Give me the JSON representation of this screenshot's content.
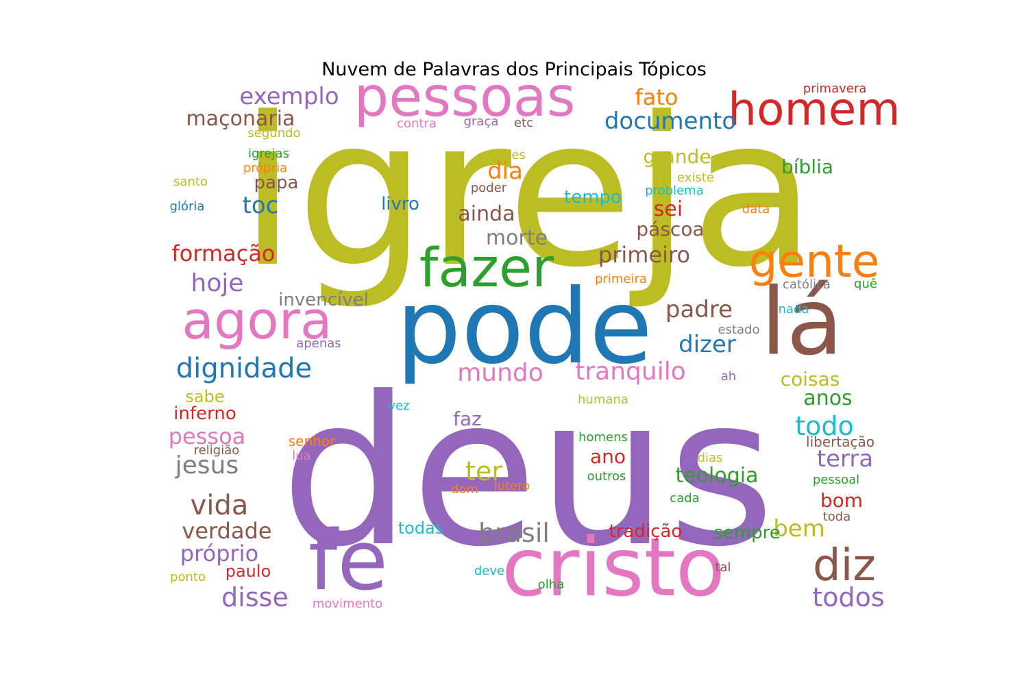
{
  "title": "Nuvem de Palavras dos Principais Tópicos",
  "colors": {
    "olive": "#bcbd22",
    "pink": "#e377c2",
    "red": "#d62728",
    "purple": "#9467bd",
    "blue": "#1f77b4",
    "green": "#2ca02c",
    "orange": "#ff7f0e",
    "brown": "#8c564b",
    "gray": "#7f7f7f",
    "cyan": "#17becf"
  },
  "words": [
    {
      "text": "igreja",
      "color": "olive"
    },
    {
      "text": "deus",
      "color": "purple"
    },
    {
      "text": "pode",
      "color": "blue"
    },
    {
      "text": "cristo",
      "color": "pink"
    },
    {
      "text": "fé",
      "color": "purple"
    },
    {
      "text": "lá",
      "color": "brown"
    },
    {
      "text": "pessoas",
      "color": "pink"
    },
    {
      "text": "fazer",
      "color": "green"
    },
    {
      "text": "agora",
      "color": "pink"
    },
    {
      "text": "homem",
      "color": "red"
    },
    {
      "text": "gente",
      "color": "orange"
    },
    {
      "text": "diz",
      "color": "brown"
    },
    {
      "text": "exemplo",
      "color": "purple"
    },
    {
      "text": "dignidade",
      "color": "blue"
    },
    {
      "text": "mundo",
      "color": "pink"
    },
    {
      "text": "tranquilo",
      "color": "pink"
    },
    {
      "text": "documento",
      "color": "blue"
    },
    {
      "text": "fato",
      "color": "orange"
    },
    {
      "text": "maçonaria",
      "color": "brown"
    },
    {
      "text": "primeiro",
      "color": "brown"
    },
    {
      "text": "dizer",
      "color": "blue"
    },
    {
      "text": "padre",
      "color": "brown"
    },
    {
      "text": "todos",
      "color": "purple"
    },
    {
      "text": "brasil",
      "color": "gray"
    },
    {
      "text": "disse",
      "color": "purple"
    },
    {
      "text": "vida",
      "color": "brown"
    },
    {
      "text": "hoje",
      "color": "purple"
    },
    {
      "text": "toc",
      "color": "blue"
    },
    {
      "text": "jesus",
      "color": "gray"
    },
    {
      "text": "pessoa",
      "color": "pink"
    },
    {
      "text": "formação",
      "color": "red"
    },
    {
      "text": "verdade",
      "color": "brown"
    },
    {
      "text": "próprio",
      "color": "purple"
    },
    {
      "text": "invencível",
      "color": "gray"
    },
    {
      "text": "morte",
      "color": "gray"
    },
    {
      "text": "ainda",
      "color": "brown"
    },
    {
      "text": "páscoa",
      "color": "brown"
    },
    {
      "text": "sei",
      "color": "red"
    },
    {
      "text": "dia",
      "color": "orange"
    },
    {
      "text": "papa",
      "color": "brown"
    },
    {
      "text": "grande",
      "color": "olive"
    },
    {
      "text": "bíblia",
      "color": "green"
    },
    {
      "text": "ter",
      "color": "olive"
    },
    {
      "text": "todo",
      "color": "cyan"
    },
    {
      "text": "terra",
      "color": "purple"
    },
    {
      "text": "teologia",
      "color": "green"
    },
    {
      "text": "bem",
      "color": "olive"
    },
    {
      "text": "anos",
      "color": "green"
    },
    {
      "text": "coisas",
      "color": "olive"
    },
    {
      "text": "tempo",
      "color": "cyan"
    },
    {
      "text": "livro",
      "color": "blue"
    },
    {
      "text": "faz",
      "color": "purple"
    },
    {
      "text": "ano",
      "color": "red"
    },
    {
      "text": "bom",
      "color": "red"
    },
    {
      "text": "tradição",
      "color": "red"
    },
    {
      "text": "sempre",
      "color": "green"
    },
    {
      "text": "inferno",
      "color": "red"
    },
    {
      "text": "sabe",
      "color": "olive"
    },
    {
      "text": "paulo",
      "color": "red"
    },
    {
      "text": "todas",
      "color": "cyan"
    },
    {
      "text": "senhor",
      "color": "orange"
    },
    {
      "text": "religião",
      "color": "brown"
    },
    {
      "text": "lua",
      "color": "pink"
    },
    {
      "text": "primeira",
      "color": "orange"
    },
    {
      "text": "católica",
      "color": "gray"
    },
    {
      "text": "quê",
      "color": "green"
    },
    {
      "text": "nada",
      "color": "cyan"
    },
    {
      "text": "estado",
      "color": "gray"
    },
    {
      "text": "ah",
      "color": "purple"
    },
    {
      "text": "apenas",
      "color": "purple"
    },
    {
      "text": "humana",
      "color": "olive"
    },
    {
      "text": "vez",
      "color": "cyan"
    },
    {
      "text": "homens",
      "color": "green"
    },
    {
      "text": "libertação",
      "color": "brown"
    },
    {
      "text": "dias",
      "color": "olive"
    },
    {
      "text": "pessoal",
      "color": "green"
    },
    {
      "text": "outros",
      "color": "green"
    },
    {
      "text": "cada",
      "color": "green"
    },
    {
      "text": "toda",
      "color": "brown"
    },
    {
      "text": "lutero",
      "color": "orange"
    },
    {
      "text": "dom",
      "color": "orange"
    },
    {
      "text": "deve",
      "color": "cyan"
    },
    {
      "text": "olha",
      "color": "green"
    },
    {
      "text": "tal",
      "color": "brown"
    },
    {
      "text": "movimento",
      "color": "pink"
    },
    {
      "text": "ponto",
      "color": "olive"
    },
    {
      "text": "primavera",
      "color": "red"
    },
    {
      "text": "contra",
      "color": "pink"
    },
    {
      "text": "graça",
      "color": "purple"
    },
    {
      "text": "etc",
      "color": "brown"
    },
    {
      "text": "segundo",
      "color": "olive"
    },
    {
      "text": "igrejas",
      "color": "green"
    },
    {
      "text": "própria",
      "color": "orange"
    },
    {
      "text": "santo",
      "color": "olive"
    },
    {
      "text": "glória",
      "color": "blue"
    },
    {
      "text": "vezes",
      "color": "olive"
    },
    {
      "text": "poder",
      "color": "brown"
    },
    {
      "text": "existe",
      "color": "olive"
    },
    {
      "text": "problema",
      "color": "cyan"
    },
    {
      "text": "data",
      "color": "orange"
    }
  ]
}
